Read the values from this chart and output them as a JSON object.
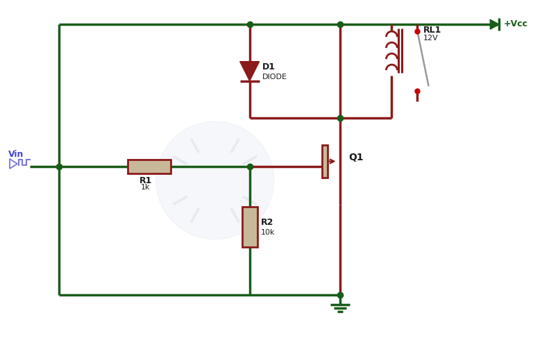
{
  "bg_color": "#ffffff",
  "wire_green": "#1a5c1a",
  "wire_dark": "#8b1a1a",
  "resistor_fill": "#c8b89a",
  "resistor_border": "#8b1a1a",
  "label_color": "#1a1a1a",
  "vin_color": "#4444cc",
  "signal_color": "#7777dd",
  "dot_green": "#1a5c1a",
  "dot_red": "#cc0000",
  "switch_arm_color": "#999999",
  "Vcc_label": "+Vcc",
  "R1_label": "R1",
  "R1_val": "1k",
  "R2_label": "R2",
  "R2_val": "10k",
  "D1_label": "D1",
  "D1_sub": "DIODE",
  "Q1_label": "Q1",
  "RL1_label": "RL1",
  "RL1_val": "12V"
}
